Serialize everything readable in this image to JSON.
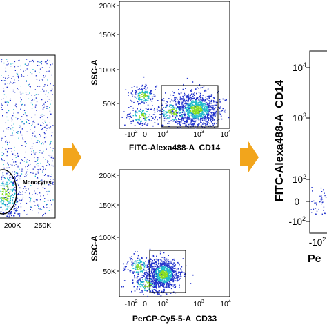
{
  "chart_data": [
    {
      "type": "scatter",
      "panel": "left (cropped)",
      "x_tick_labels": [
        "200K",
        "250K"
      ],
      "gate_label": "Monocytes",
      "gate_shape": "ellipse"
    },
    {
      "type": "scatter",
      "panel": "top-middle",
      "xlabel": "FITC-Alexa488-A  CD14",
      "ylabel": "SSC-A",
      "x_scale": "biexponential",
      "x_tick_labels": [
        {
          "base": "-10",
          "exp": "2"
        },
        {
          "base": "0",
          "exp": ""
        },
        {
          "base": "10",
          "exp": "2"
        },
        {
          "base": "10",
          "exp": "3"
        },
        {
          "base": "10",
          "exp": "4"
        }
      ],
      "y_tick_labels": [
        "200K",
        "150K",
        "100K",
        "50K"
      ],
      "ylim": [
        0,
        210000
      ],
      "gate": {
        "shape": "rectangle",
        "x_range": [
          "10^2",
          "10^3.5"
        ]
      },
      "populations": [
        {
          "name": "main",
          "x_log10_center": 3.0,
          "y_center": 45000,
          "density": "high"
        },
        {
          "name": "cd14-negative",
          "x_log10_center": 1.3,
          "y_center": 60000,
          "density": "low"
        }
      ]
    },
    {
      "type": "scatter",
      "panel": "bottom-middle",
      "xlabel": "PerCP-Cy5-5-A  CD33",
      "ylabel": "SSC-A",
      "x_scale": "biexponential",
      "x_tick_labels": [
        {
          "base": "-10",
          "exp": "2"
        },
        {
          "base": "0",
          "exp": ""
        },
        {
          "base": "10",
          "exp": "2"
        },
        {
          "base": "10",
          "exp": "3"
        },
        {
          "base": "10",
          "exp": "4"
        }
      ],
      "y_tick_labels": [
        "200K",
        "150K",
        "100K",
        "50K"
      ],
      "ylim": [
        0,
        210000
      ],
      "gate": {
        "shape": "rectangle",
        "x_range": [
          "10^1.7",
          "10^2.7"
        ]
      },
      "populations": [
        {
          "name": "main",
          "x_log10_center": 2.1,
          "y_center": 40000,
          "density": "high"
        }
      ]
    },
    {
      "type": "scatter",
      "panel": "right (cropped)",
      "ylabel": "FITC-Alexa488-A  CD14",
      "xlabel_partial": "Pe",
      "y_tick_labels": [
        {
          "base": "10",
          "exp": "4"
        },
        {
          "base": "10",
          "exp": "3"
        },
        {
          "base": "10",
          "exp": "2"
        },
        {
          "base": "0",
          "exp": ""
        },
        {
          "base": "-10",
          "exp": "2"
        }
      ],
      "x_tick_labels": [
        {
          "base": "-10",
          "exp": "2"
        }
      ]
    }
  ],
  "colors": {
    "density_low": "#2233cc",
    "density_mid": "#22bbcc",
    "density_high": "#88dd22",
    "arrow": "#f2a51c",
    "frame": "#000000"
  },
  "icons": [
    "right-arrow-icon",
    "right-arrow-icon"
  ]
}
